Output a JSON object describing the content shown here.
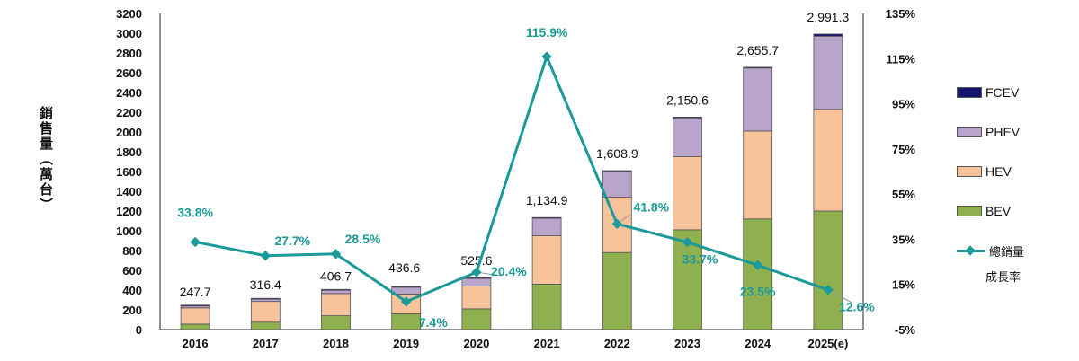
{
  "chart_data": {
    "type": "stacked-bar-with-line",
    "categories": [
      "2016",
      "2017",
      "2018",
      "2019",
      "2020",
      "2021",
      "2022",
      "2023",
      "2024",
      "2025(e)"
    ],
    "series": [
      {
        "name": "BEV",
        "color": "#8fb04e",
        "values": [
          55,
          75,
          140,
          160,
          210,
          460,
          780,
          1010,
          1120,
          1200
        ]
      },
      {
        "name": "HEV",
        "color": "#f7c39b",
        "values": [
          165,
          210,
          225,
          200,
          230,
          490,
          560,
          740,
          890,
          1030
        ]
      },
      {
        "name": "PHEV",
        "color": "#b9a4cc",
        "values": [
          20,
          25,
          35,
          70,
          80,
          180,
          260,
          400,
          640,
          740
        ]
      },
      {
        "name": "FCEV",
        "color": "#14146e",
        "values": [
          7.7,
          6.4,
          6.7,
          6.6,
          5.6,
          4.9,
          8.9,
          0.6,
          5.7,
          21.3
        ]
      }
    ],
    "totals": [
      247.7,
      316.4,
      406.7,
      436.6,
      525.6,
      1134.9,
      1608.9,
      2150.6,
      2655.7,
      2991.3
    ],
    "total_labels": [
      "247.7",
      "316.4",
      "406.7",
      "436.6",
      "525.6",
      "1,134.9",
      "1,608.9",
      "2,150.6",
      "2,655.7",
      "2,991.3"
    ],
    "growth": {
      "name": "總銷量成長率",
      "values": [
        33.8,
        27.7,
        28.5,
        7.4,
        20.4,
        115.9,
        41.8,
        33.7,
        23.5,
        12.6
      ],
      "labels": [
        "33.8%",
        "27.7%",
        "28.5%",
        "7.4%",
        "20.4%",
        "115.9%",
        "41.8%",
        "33.7%",
        "23.5%",
        "12.6%"
      ],
      "color": "#1a9a98"
    },
    "y_left": {
      "min": 0,
      "max": 3200,
      "step": 200,
      "label": "銷售量（萬台）"
    },
    "y_right": {
      "min": -5,
      "max": 135,
      "step": 20,
      "ticks": [
        "-5%",
        "15%",
        "35%",
        "55%",
        "75%",
        "95%",
        "115%",
        "135%"
      ]
    }
  },
  "legend": {
    "fcev": "FCEV",
    "phev": "PHEV",
    "hev": "HEV",
    "bev": "BEV",
    "line_main": "總銷量",
    "line_sub": "成長率"
  }
}
